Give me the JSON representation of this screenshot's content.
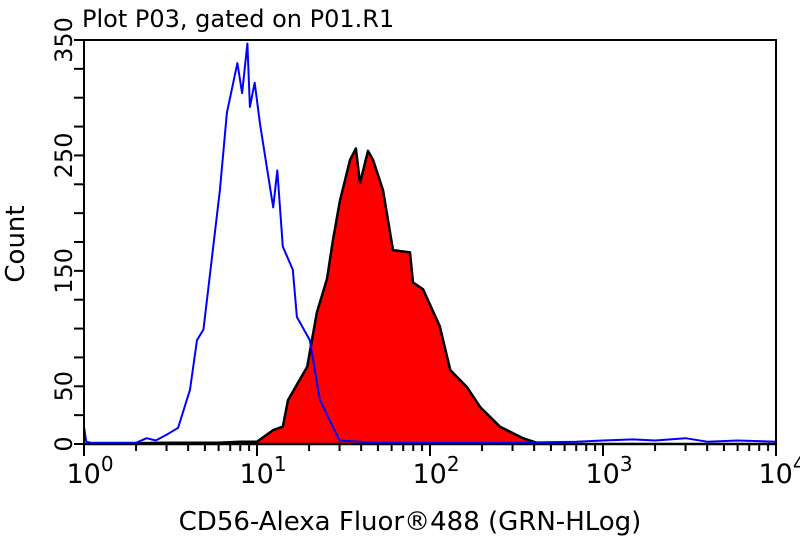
{
  "chart_data": {
    "type": "area",
    "title": "Plot P03, gated on P01.R1",
    "xlabel": "CD56-Alexa Fluor®488 (GRN-HLog)",
    "ylabel": "Count",
    "x_scale": "log",
    "xlim": [
      1,
      10000
    ],
    "ylim": [
      0,
      350
    ],
    "x_tick_labels": [
      {
        "base": "10",
        "exp": "0"
      },
      {
        "base": "10",
        "exp": "1"
      },
      {
        "base": "10",
        "exp": "2"
      },
      {
        "base": "10",
        "exp": "3"
      },
      {
        "base": "10",
        "exp": "4"
      }
    ],
    "y_tick_labels": [
      "0",
      "50",
      "150",
      "250",
      "350"
    ],
    "y_tick_label_values": [
      0,
      50,
      150,
      250,
      350
    ],
    "grid": false,
    "series": [
      {
        "style": "line",
        "color": "#0000ff",
        "x": [
          1.0,
          1.03,
          1.1,
          1.5,
          2.0,
          2.3,
          2.6,
          3.0,
          3.5,
          4.1,
          4.5,
          4.9,
          5.3,
          6.1,
          6.7,
          7.7,
          8.2,
          8.8,
          9.1,
          9.7,
          10.4,
          11.4,
          12.4,
          13.1,
          14.1,
          16.1,
          17.0,
          20.2,
          23.1,
          30,
          50,
          100,
          300,
          700,
          1000,
          1500,
          2000,
          3000,
          4000,
          6000,
          10000
        ],
        "y": [
          15,
          2,
          1,
          1,
          1,
          5,
          3,
          8,
          14,
          47,
          90,
          99,
          142,
          220,
          287,
          330,
          304,
          347,
          292,
          313,
          278,
          240,
          205,
          237,
          171,
          151,
          110,
          90,
          38,
          3,
          1,
          1,
          1,
          2,
          3,
          4,
          3,
          5,
          2,
          3,
          2
        ]
      },
      {
        "style": "filled",
        "color": "#ff0000",
        "outline": "#000000",
        "x": [
          1.0,
          3.0,
          6.0,
          8.0,
          10.0,
          12.4,
          14.1,
          15.1,
          19.5,
          22.2,
          25.4,
          27.5,
          30.2,
          34.5,
          37.3,
          39.4,
          43.8,
          46.9,
          53.5,
          61.1,
          76.6,
          79.8,
          91.2,
          114,
          131,
          164,
          195,
          254,
          345,
          415,
          600,
          1000,
          10000
        ],
        "y": [
          0,
          1,
          1,
          2,
          2,
          12,
          15,
          38,
          67,
          114,
          143,
          177,
          211,
          246,
          256,
          226,
          254,
          246,
          220,
          168,
          166,
          140,
          134,
          102,
          64,
          49,
          32,
          15,
          5,
          1,
          0,
          0,
          0
        ]
      }
    ]
  }
}
